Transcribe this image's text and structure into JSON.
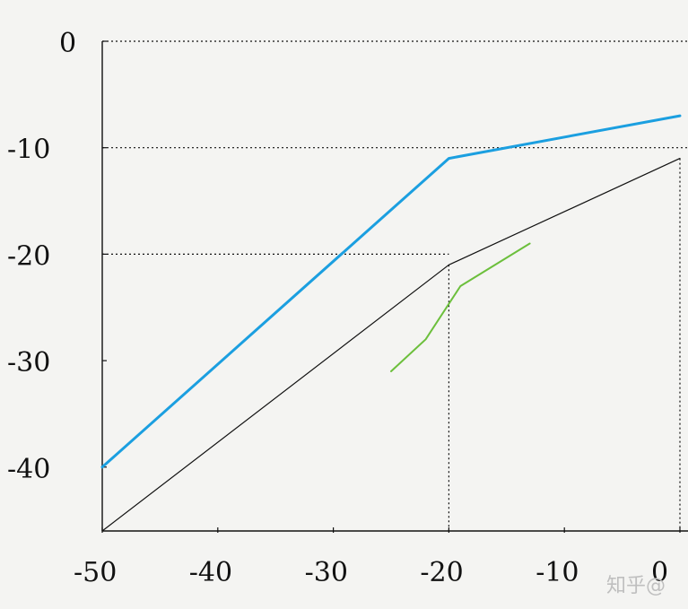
{
  "chart_data": {
    "type": "line",
    "title": "",
    "xlabel": "",
    "ylabel": "",
    "xlim": [
      -50,
      0
    ],
    "ylim": [
      -46,
      0
    ],
    "x_ticks": [
      {
        "value": -50,
        "label": "-50"
      },
      {
        "value": -40,
        "label": "-40"
      },
      {
        "value": -30,
        "label": "-30"
      },
      {
        "value": -20,
        "label": "-20"
      },
      {
        "value": -10,
        "label": "-10"
      },
      {
        "value": 0,
        "label": "0"
      }
    ],
    "y_ticks": [
      {
        "value": 0,
        "label": "0"
      },
      {
        "value": -10,
        "label": "-10"
      },
      {
        "value": -20,
        "label": "-20"
      },
      {
        "value": -30,
        "label": "-30"
      },
      {
        "value": -40,
        "label": "-40"
      }
    ],
    "grid": false,
    "series": [
      {
        "color": "#1b9fe0",
        "points": [
          [
            -50,
            -40
          ],
          [
            -20,
            -11
          ],
          [
            0,
            -7
          ]
        ]
      },
      {
        "color": "#111111",
        "points": [
          [
            -50,
            -46
          ],
          [
            -20,
            -21
          ],
          [
            0,
            -11
          ]
        ]
      },
      {
        "color": "#6cbf3c",
        "points": [
          [
            -25,
            -31
          ],
          [
            -22,
            -28
          ],
          [
            -19,
            -23
          ],
          [
            -13,
            -19
          ]
        ]
      }
    ],
    "guide_lines": {
      "horizontal": [
        0,
        -10,
        -20
      ],
      "vertical": [
        -20,
        0
      ]
    }
  },
  "watermark": "知乎@"
}
